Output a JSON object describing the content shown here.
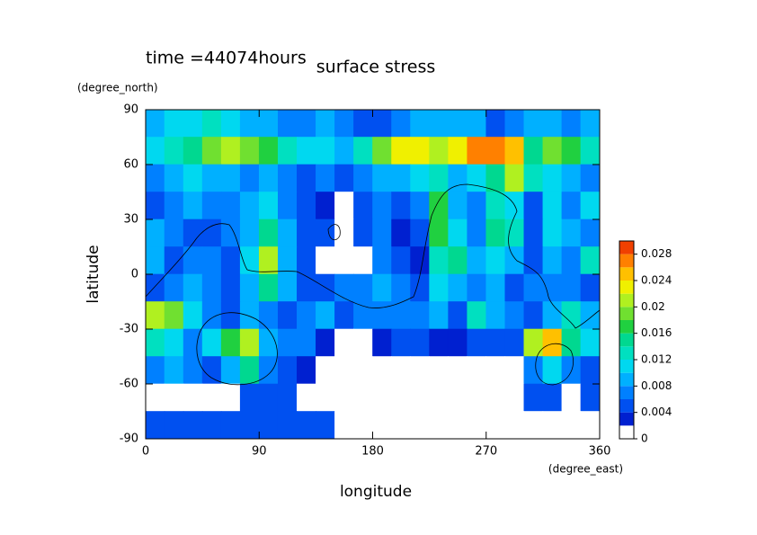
{
  "chart_data": {
    "type": "heatmap",
    "title": "surface stress",
    "subtitle": "time =44074hours",
    "x_label": "longitude",
    "y_label": "latitude",
    "x_units": "(degree_east)",
    "y_units": "(degree_north)",
    "xlim": [
      0,
      360
    ],
    "ylim": [
      -90,
      90
    ],
    "xticks": [
      0,
      90,
      180,
      270,
      360
    ],
    "yticks": [
      -90,
      -60,
      -30,
      0,
      30,
      60,
      90
    ],
    "x": [
      7.5,
      22.5,
      37.5,
      52.5,
      67.5,
      82.5,
      97.5,
      112.5,
      127.5,
      142.5,
      157.5,
      172.5,
      187.5,
      202.5,
      217.5,
      232.5,
      247.5,
      262.5,
      277.5,
      292.5,
      307.5,
      322.5,
      337.5,
      352.5
    ],
    "y": [
      82.5,
      67.5,
      52.5,
      37.5,
      22.5,
      7.5,
      -7.5,
      -22.5,
      -37.5,
      -52.5,
      -67.5,
      -82.5
    ],
    "values": [
      [
        0.008,
        0.01,
        0.01,
        0.012,
        0.01,
        0.008,
        0.008,
        0.006,
        0.006,
        0.008,
        0.006,
        0.004,
        0.004,
        0.006,
        0.008,
        0.008,
        0.008,
        0.008,
        0.004,
        0.006,
        0.008,
        0.008,
        0.006,
        0.008
      ],
      [
        0.01,
        0.012,
        0.014,
        0.018,
        0.02,
        0.018,
        0.016,
        0.012,
        0.01,
        0.01,
        0.008,
        0.012,
        0.018,
        0.022,
        0.022,
        0.02,
        0.022,
        0.026,
        0.026,
        0.024,
        0.014,
        0.018,
        0.016,
        0.012
      ],
      [
        0.006,
        0.008,
        0.01,
        0.008,
        0.008,
        0.006,
        0.008,
        0.006,
        0.004,
        0.006,
        0.004,
        0.006,
        0.008,
        0.008,
        0.01,
        0.012,
        0.008,
        0.01,
        0.014,
        0.02,
        0.012,
        0.01,
        0.008,
        0.006
      ],
      [
        0.004,
        0.006,
        0.008,
        0.006,
        0.006,
        0.008,
        0.01,
        0.006,
        0.004,
        0.002,
        0,
        0.004,
        0.006,
        0.004,
        0.006,
        0.016,
        0.008,
        0.006,
        0.012,
        0.01,
        0.004,
        0.01,
        0.006,
        0.01
      ],
      [
        0.008,
        0.006,
        0.004,
        0.004,
        0.006,
        0.008,
        0.014,
        0.008,
        0.004,
        0.004,
        0,
        0.004,
        0.006,
        0.002,
        0.004,
        0.016,
        0.01,
        0.006,
        0.014,
        0.012,
        0.004,
        0.01,
        0.008,
        0.006
      ],
      [
        0.008,
        0.004,
        0.006,
        0.006,
        0.004,
        0.01,
        0.02,
        0.008,
        0.004,
        0,
        0,
        0,
        0.006,
        0.004,
        0.002,
        0.012,
        0.014,
        0.008,
        0.01,
        0.008,
        0.004,
        0.008,
        0.006,
        0.012
      ],
      [
        0.004,
        0.006,
        0.008,
        0.006,
        0.004,
        0.008,
        0.014,
        0.008,
        0.004,
        0.004,
        0.006,
        0.006,
        0.008,
        0.006,
        0.004,
        0.01,
        0.008,
        0.006,
        0.008,
        0.004,
        0.006,
        0.006,
        0.006,
        0.004
      ],
      [
        0.02,
        0.018,
        0.01,
        0.006,
        0.004,
        0.008,
        0.006,
        0.004,
        0.006,
        0.008,
        0.004,
        0.006,
        0.006,
        0.006,
        0.006,
        0.008,
        0.004,
        0.012,
        0.008,
        0.006,
        0.004,
        0.008,
        0.012,
        0.008
      ],
      [
        0.012,
        0.01,
        0.006,
        0.01,
        0.016,
        0.02,
        0.008,
        0.006,
        0.006,
        0.002,
        0,
        0,
        0.002,
        0.004,
        0.004,
        0.002,
        0.002,
        0.004,
        0.004,
        0.004,
        0.02,
        0.024,
        0.014,
        0.01
      ],
      [
        0.006,
        0.008,
        0.006,
        0.004,
        0.008,
        0.014,
        0.006,
        0.004,
        0.002,
        0,
        0,
        0,
        0,
        0,
        0,
        0,
        0,
        0,
        0,
        0,
        0.006,
        0.01,
        0.006,
        0.004
      ],
      [
        0,
        0,
        0,
        0,
        0,
        0.004,
        0.004,
        0.004,
        0,
        0,
        0,
        0,
        0,
        0,
        0,
        0,
        0,
        0,
        0,
        0,
        0.004,
        0.004,
        0,
        0.004
      ],
      [
        0.004,
        0.004,
        0.004,
        0.004,
        0.004,
        0.004,
        0.004,
        0.004,
        0.004,
        0.004,
        0,
        0,
        0,
        0,
        0,
        0,
        0,
        0,
        0,
        0,
        0,
        0,
        0,
        0
      ]
    ],
    "levels": [
      0,
      0.002,
      0.004,
      0.006,
      0.008,
      0.01,
      0.012,
      0.014,
      0.016,
      0.018,
      0.02,
      0.022,
      0.024,
      0.026,
      0.028,
      0.03
    ],
    "colors": [
      "#ffffff",
      "#0020d0",
      "#0050f0",
      "#0080ff",
      "#00b0ff",
      "#00d8f0",
      "#00e0c0",
      "#00d890",
      "#20d040",
      "#70e030",
      "#b0f020",
      "#f0f000",
      "#ffc000",
      "#ff8000",
      "#f04000"
    ],
    "clim": [
      0,
      0.03
    ],
    "cticks": [
      0,
      0.004,
      0.008,
      0.012,
      0.016,
      0.02,
      0.024,
      0.028
    ]
  }
}
